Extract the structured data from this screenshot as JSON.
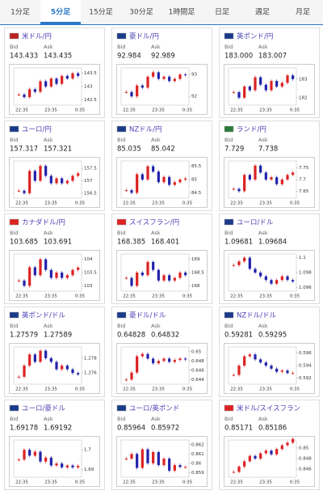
{
  "tabs": [
    "1分足",
    "5分足",
    "15分足",
    "30分足",
    "1時間足",
    "日足",
    "週足",
    "月足"
  ],
  "active_tab": 1,
  "labels": {
    "bid": "Bid",
    "ask": "Ask"
  },
  "time_labels": [
    "22:35",
    "23:35",
    "0:35"
  ],
  "panels": [
    {
      "pair": "米ドル/円",
      "bid": "143.433",
      "ask": "143.435",
      "ylim": [
        142.3,
        143.7
      ],
      "yticks": [
        143.5,
        143,
        142.5
      ],
      "closes": [
        142.7,
        142.6,
        142.9,
        142.8,
        143.2,
        143.0,
        143.3,
        143.1,
        143.4,
        143.3,
        143.5,
        143.4
      ]
    },
    {
      "pair": "豪ドル/円",
      "bid": "92.984",
      "ask": "92.989",
      "ylim": [
        91.6,
        93.3
      ],
      "yticks": [
        93,
        92
      ],
      "closes": [
        92.2,
        92.0,
        92.5,
        92.4,
        92.9,
        93.1,
        92.8,
        92.9,
        92.7,
        92.8,
        93.0,
        92.98
      ]
    },
    {
      "pair": "英ポンド/円",
      "bid": "183.000",
      "ask": "183.007",
      "ylim": [
        181.6,
        183.6
      ],
      "yticks": [
        183,
        182
      ],
      "closes": [
        182.3,
        182.0,
        182.6,
        182.4,
        183.1,
        182.7,
        182.4,
        182.9,
        182.6,
        182.8,
        183.2,
        183.0
      ]
    },
    {
      "pair": "ユーロ/円",
      "bid": "157.317",
      "ask": "157.321",
      "ylim": [
        156.3,
        157.8
      ],
      "yticks": [
        157.5,
        157,
        156.5
      ],
      "closes": [
        156.6,
        156.5,
        157.4,
        157.0,
        157.6,
        157.2,
        156.9,
        157.1,
        156.9,
        157.0,
        157.2,
        157.3
      ]
    },
    {
      "pair": "NZドル/円",
      "bid": "85.035",
      "ask": "85.042",
      "ylim": [
        84.3,
        85.7
      ],
      "yticks": [
        85.5,
        85,
        84.5
      ],
      "closes": [
        84.6,
        84.5,
        85.2,
        85.0,
        85.5,
        85.3,
        84.9,
        85.1,
        84.8,
        84.9,
        85.0,
        85.04
      ]
    },
    {
      "pair": "ランド/円",
      "bid": "7.729",
      "ask": "7.738",
      "ylim": [
        7.62,
        7.78
      ],
      "yticks": [
        7.75,
        7.7,
        7.65
      ],
      "closes": [
        7.66,
        7.65,
        7.72,
        7.7,
        7.76,
        7.73,
        7.7,
        7.71,
        7.68,
        7.7,
        7.72,
        7.73
      ]
    },
    {
      "pair": "カナダドル/円",
      "bid": "103.685",
      "ask": "103.691",
      "ylim": [
        102.8,
        104.2
      ],
      "yticks": [
        104,
        103.5,
        103
      ],
      "closes": [
        103.2,
        103.0,
        103.7,
        103.4,
        104.0,
        103.6,
        103.3,
        103.5,
        103.3,
        103.4,
        103.6,
        103.69
      ]
    },
    {
      "pair": "スイスフラン/円",
      "bid": "168.385",
      "ask": "168.401",
      "ylim": [
        167.8,
        169.2
      ],
      "yticks": [
        169,
        168.5,
        168
      ],
      "closes": [
        168.3,
        168.0,
        168.5,
        168.4,
        168.9,
        168.6,
        168.2,
        168.4,
        168.2,
        168.3,
        168.5,
        168.4
      ]
    },
    {
      "pair": "ユーロ/ドル",
      "bid": "1.09681",
      "ask": "1.09684",
      "ylim": [
        1.0955,
        1.1005
      ],
      "yticks": [
        1.1,
        1.098,
        1.096
      ],
      "closes": [
        1.099,
        1.0995,
        1.1,
        1.0985,
        1.098,
        1.0975,
        1.097,
        1.0965,
        1.097,
        1.0975,
        1.097,
        1.0968
      ]
    },
    {
      "pair": "英ポンド/ドル",
      "bid": "1.27579",
      "ask": "1.27589",
      "ylim": [
        1.2745,
        1.2795
      ],
      "yticks": [
        1.278,
        1.276
      ],
      "closes": [
        1.2755,
        1.277,
        1.2785,
        1.2775,
        1.279,
        1.278,
        1.2775,
        1.2765,
        1.277,
        1.2765,
        1.276,
        1.2758
      ]
    },
    {
      "pair": "豪ドル/ドル",
      "bid": "0.64828",
      "ask": "0.64832",
      "ylim": [
        0.643,
        0.651
      ],
      "yticks": [
        0.65,
        0.648,
        0.646,
        0.644
      ],
      "closes": [
        0.644,
        0.6455,
        0.649,
        0.6495,
        0.6485,
        0.6475,
        0.648,
        0.6485,
        0.6478,
        0.6482,
        0.6485,
        0.6483
      ]
    },
    {
      "pair": "NZドル/ドル",
      "bid": "0.59281",
      "ask": "0.59295",
      "ylim": [
        0.591,
        0.597
      ],
      "yticks": [
        0.596,
        0.594,
        0.592
      ],
      "closes": [
        0.5925,
        0.594,
        0.5955,
        0.5958,
        0.595,
        0.5945,
        0.594,
        0.5935,
        0.593,
        0.5932,
        0.5928,
        0.5928
      ]
    },
    {
      "pair": "ユーロ/豪ドル",
      "bid": "1.69178",
      "ask": "1.69192",
      "ylim": [
        1.686,
        1.705
      ],
      "yticks": [
        1.7,
        1.69
      ],
      "closes": [
        1.695,
        1.7,
        1.697,
        1.699,
        1.694,
        1.696,
        1.692,
        1.693,
        1.691,
        1.692,
        1.691,
        1.6918
      ]
    },
    {
      "pair": "ユーロ/英ポンド",
      "bid": "0.85964",
      "ask": "0.85972",
      "ylim": [
        0.8585,
        0.8625
      ],
      "yticks": [
        0.862,
        0.861,
        0.86,
        0.859
      ],
      "closes": [
        0.8605,
        0.861,
        0.8595,
        0.8615,
        0.86,
        0.8612,
        0.8598,
        0.8605,
        0.8592,
        0.8598,
        0.8596,
        0.8596
      ]
    },
    {
      "pair": "米ドル/スイスフラン",
      "bid": "0.85171",
      "ask": "0.85186",
      "ylim": [
        0.8445,
        0.8515
      ],
      "yticks": [
        0.85,
        0.848,
        0.846
      ],
      "closes": [
        0.8455,
        0.8465,
        0.8475,
        0.8485,
        0.848,
        0.849,
        0.8495,
        0.8488,
        0.8498,
        0.8505,
        0.851,
        0.8517
      ]
    }
  ]
}
